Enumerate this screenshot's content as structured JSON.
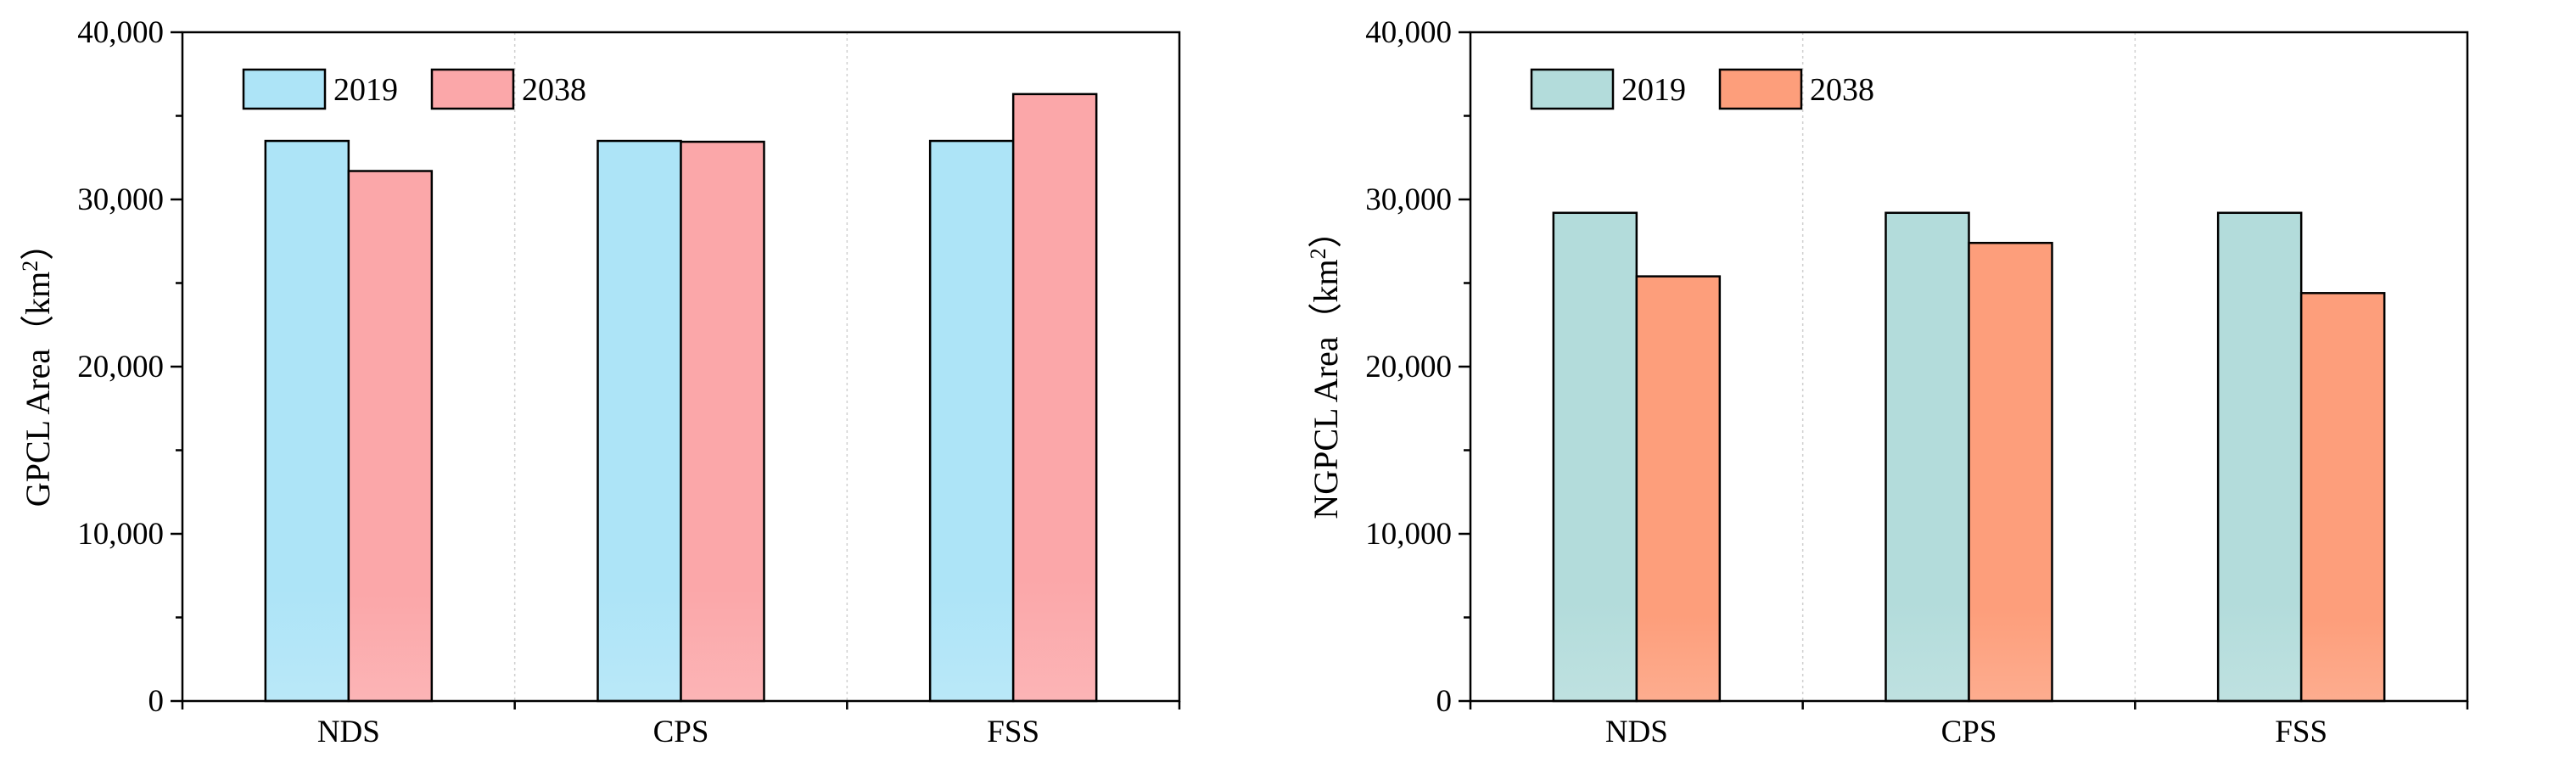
{
  "chart_data": [
    {
      "type": "bar",
      "categories": [
        "NDS",
        "CPS",
        "FSS"
      ],
      "series": [
        {
          "name": "2019",
          "values": [
            33500,
            33500,
            33500
          ],
          "color": "#ADE4F7"
        },
        {
          "name": "2038",
          "values": [
            31700,
            33450,
            36300
          ],
          "color": "#FBA7A9"
        }
      ],
      "ylabel": "GPCL Area（km²）",
      "ylabel_parts": {
        "main": "GPCL Area（km",
        "sup": "2",
        "end": "）"
      },
      "ylim": [
        0,
        40000
      ],
      "yticks": [
        "0",
        "10,000",
        "20,000",
        "30,000",
        "40,000"
      ],
      "legend_position": "top-left",
      "grid": false
    },
    {
      "type": "bar",
      "categories": [
        "NDS",
        "CPS",
        "FSS"
      ],
      "series": [
        {
          "name": "2019",
          "values": [
            29200,
            29200,
            29200
          ],
          "color": "#B3DCDB"
        },
        {
          "name": "2038",
          "values": [
            25400,
            27400,
            24400
          ],
          "color": "#FD9E7B"
        }
      ],
      "ylabel": "NGPCL Area（km²）",
      "ylabel_parts": {
        "main": "NGPCL Area（km",
        "sup": "2",
        "end": "）"
      },
      "ylim": [
        0,
        40000
      ],
      "yticks": [
        "0",
        "10,000",
        "20,000",
        "30,000",
        "40,000"
      ],
      "legend_position": "top-left",
      "grid": false
    }
  ]
}
